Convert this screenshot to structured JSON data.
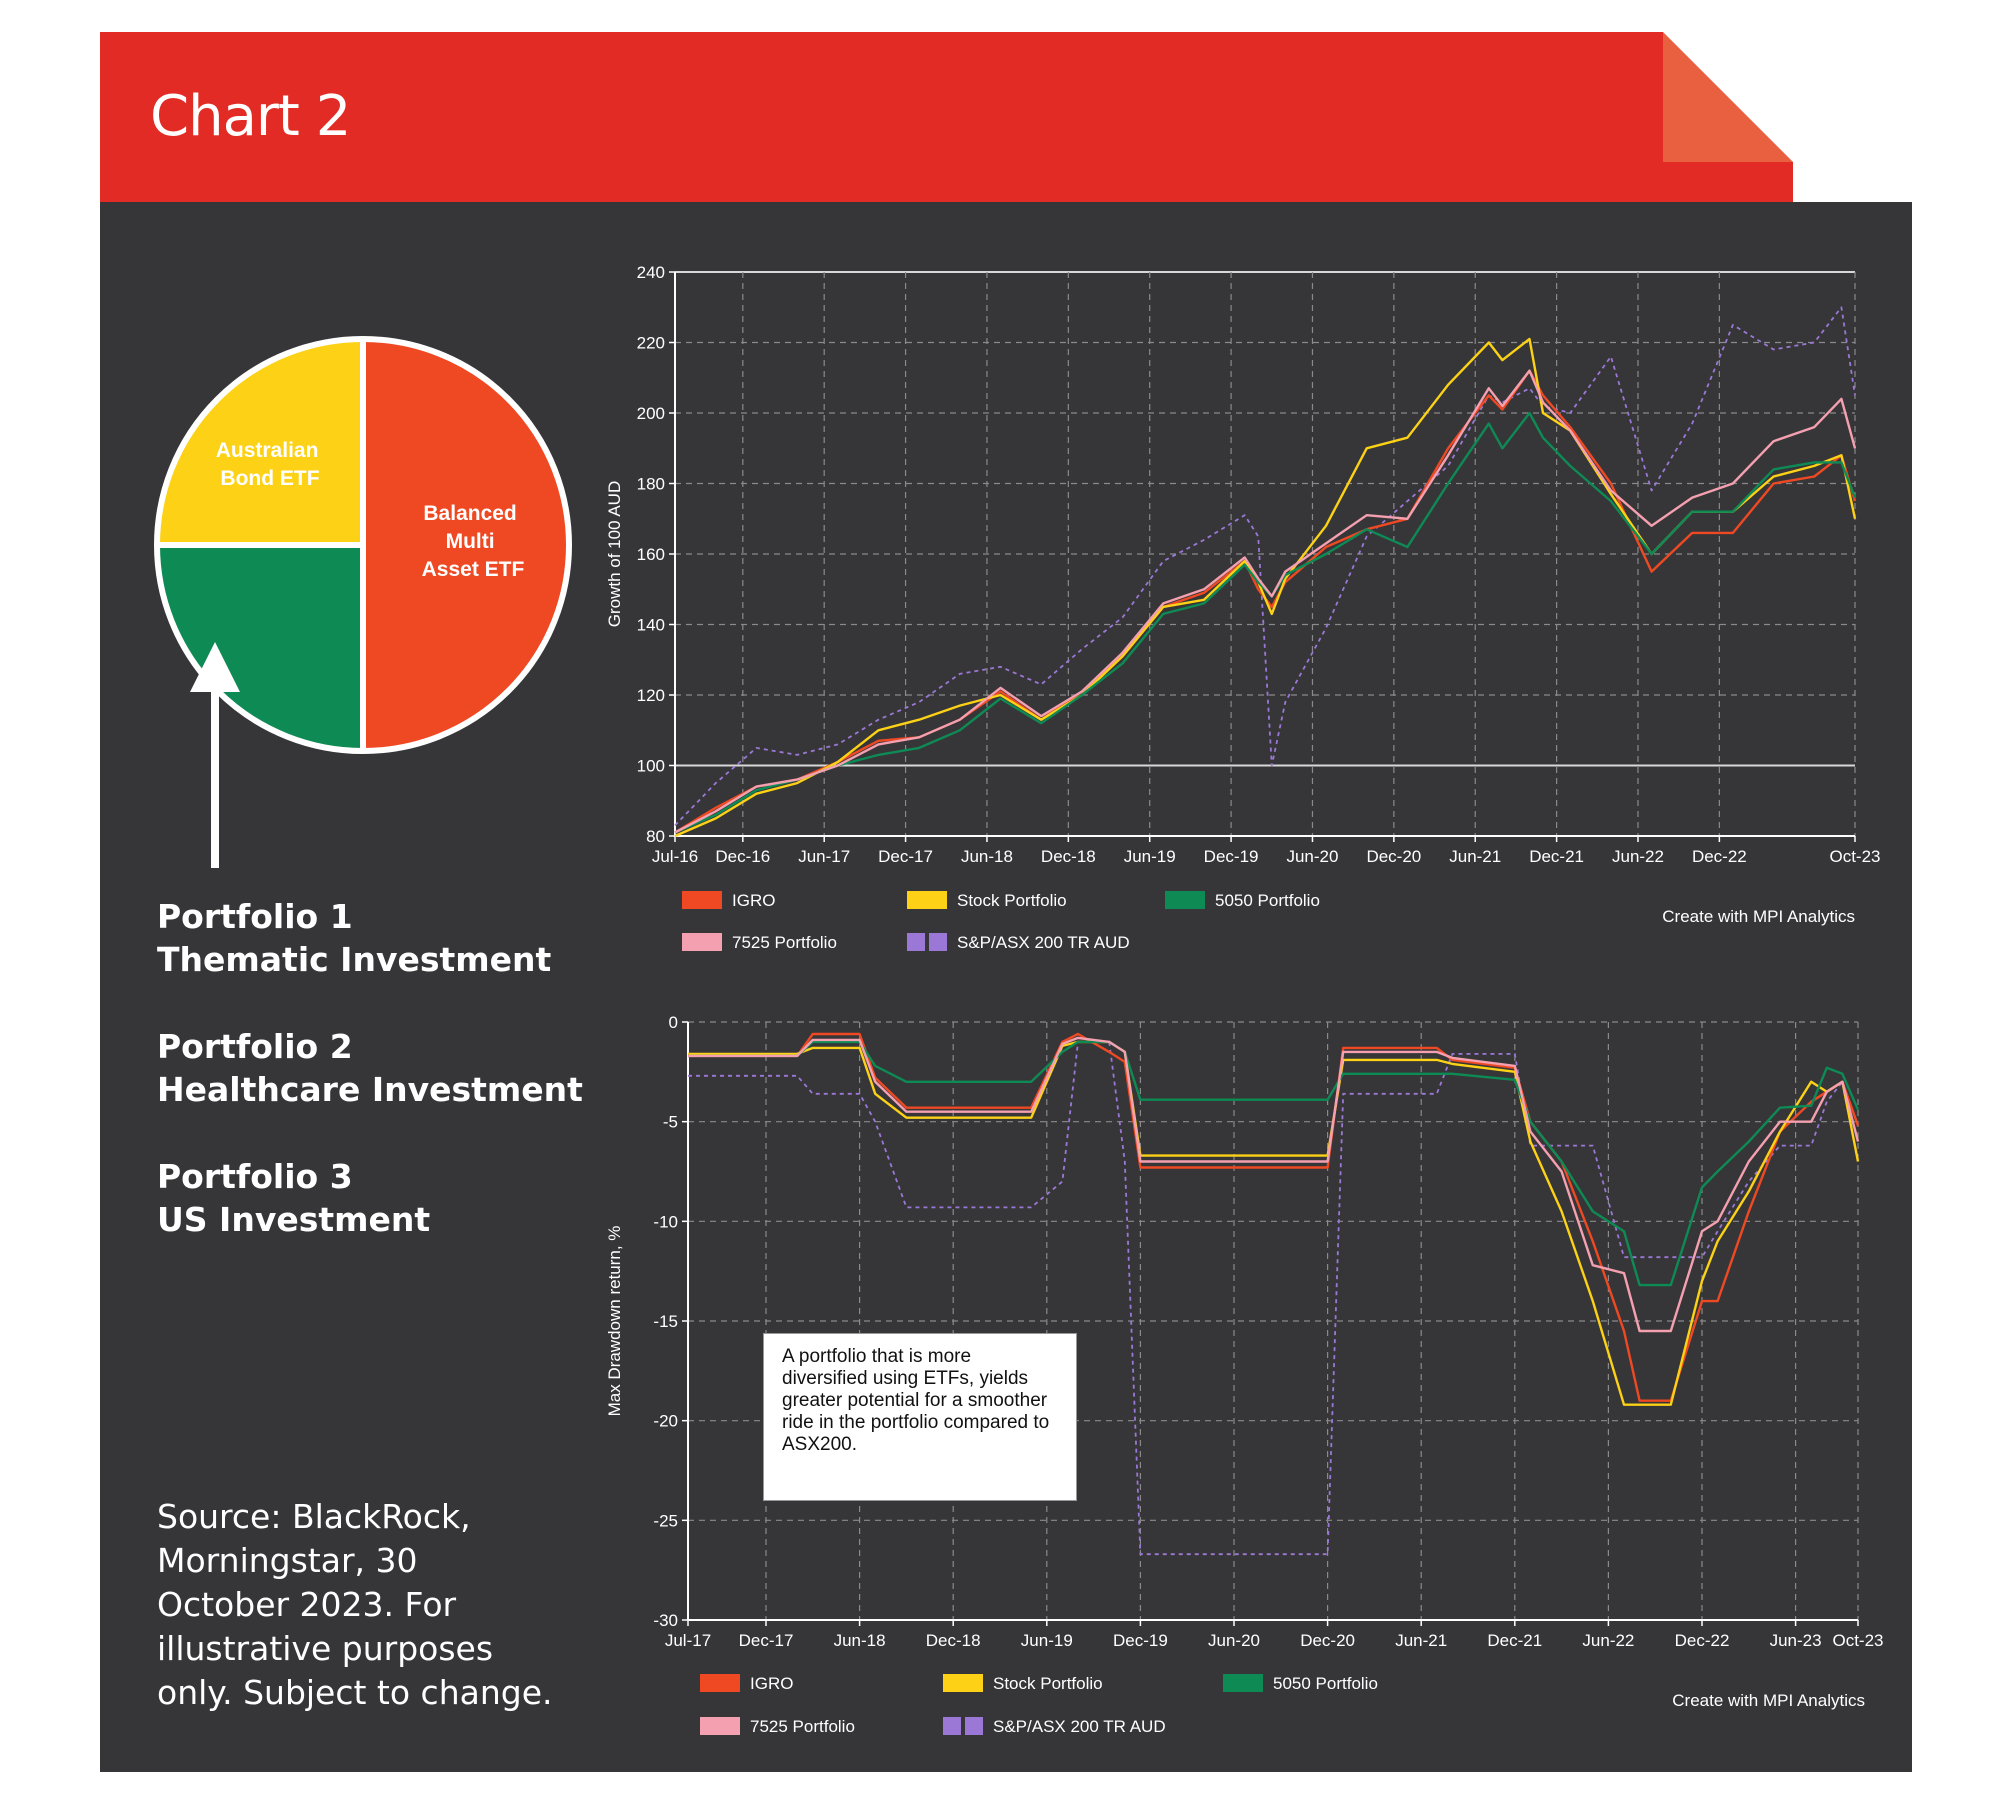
{
  "header": {
    "title": "Chart 2"
  },
  "pie": {
    "type": "pie",
    "slices": [
      {
        "label": "Balanced Multi Asset ETF",
        "lines": [
          "Balanced",
          "Multi",
          "Asset ETF"
        ],
        "value": 50,
        "color": "#ef4923"
      },
      {
        "label": "Australian Bond ETF",
        "lines": [
          "Australian",
          "Bond ETF"
        ],
        "value": 25,
        "color": "#0e8a55"
      },
      {
        "label": "",
        "lines": [],
        "value": 25,
        "color": "#fcd116"
      }
    ]
  },
  "portfolios": [
    {
      "name": "Portfolio 1",
      "desc": "Thematic Investment"
    },
    {
      "name": "Portfolio 2",
      "desc": "Healthcare Investment"
    },
    {
      "name": "Portfolio 3",
      "desc": "US Investment"
    }
  ],
  "source": "Source: BlackRock, Morningstar, 30 October 2023. For illustrative purposes only. Subject to change.",
  "note": "A portfolio that is more diversified using ETFs, yields greater potential for a smoother ride in the portfolio compared to ASX200.",
  "chart_data": [
    {
      "type": "line",
      "ylabel": "Growth of 100 AUD",
      "ylim": [
        80,
        240
      ],
      "yticks": [
        80,
        100,
        120,
        140,
        160,
        180,
        200,
        220,
        240
      ],
      "xlim": [
        "2016-07",
        "2023-10"
      ],
      "xticks": [
        "Jul-16",
        "Dec-16",
        "Jun-17",
        "Dec-17",
        "Jun-18",
        "Dec-18",
        "Jun-19",
        "Dec-19",
        "Jun-20",
        "Dec-20",
        "Jun-21",
        "Dec-21",
        "Jun-22",
        "Dec-22",
        "Oct-23"
      ],
      "grid": true,
      "legend_position": "bottom",
      "credit": "Create with MPI Analytics",
      "x": [
        "2016-07",
        "2016-10",
        "2017-01",
        "2017-04",
        "2017-07",
        "2017-10",
        "2018-01",
        "2018-04",
        "2018-07",
        "2018-10",
        "2019-01",
        "2019-04",
        "2019-07",
        "2019-10",
        "2020-01",
        "2020-02",
        "2020-03",
        "2020-04",
        "2020-07",
        "2020-10",
        "2021-01",
        "2021-04",
        "2021-07",
        "2021-08",
        "2021-10",
        "2021-11",
        "2022-01",
        "2022-04",
        "2022-07",
        "2022-10",
        "2023-01",
        "2023-04",
        "2023-07",
        "2023-09",
        "2023-10"
      ],
      "series": [
        {
          "name": "IGRO",
          "color": "#ef4923",
          "dash": false,
          "values": [
            81,
            88,
            94,
            96,
            101,
            107,
            108,
            113,
            121,
            113,
            121,
            131,
            145,
            149,
            158,
            150,
            145,
            152,
            162,
            167,
            170,
            190,
            205,
            201,
            212,
            205,
            196,
            180,
            155,
            166,
            166,
            180,
            182,
            188,
            175
          ]
        },
        {
          "name": "Stock Portfolio",
          "color": "#fcd116",
          "dash": false,
          "values": [
            80,
            85,
            92,
            95,
            101,
            110,
            113,
            117,
            120,
            113,
            120,
            131,
            145,
            147,
            158,
            152,
            143,
            153,
            168,
            190,
            193,
            208,
            220,
            215,
            221,
            200,
            195,
            177,
            160,
            172,
            172,
            182,
            185,
            188,
            170
          ]
        },
        {
          "name": "5050 Portfolio",
          "color": "#0e8a55",
          "dash": false,
          "values": [
            81,
            86,
            93,
            96,
            100,
            103,
            105,
            110,
            119,
            112,
            120,
            129,
            143,
            146,
            157,
            152,
            148,
            154,
            160,
            167,
            162,
            180,
            197,
            190,
            200,
            193,
            185,
            175,
            160,
            172,
            172,
            184,
            186,
            186,
            176
          ]
        },
        {
          "name": "7525 Portfolio",
          "color": "#f4a0b0",
          "dash": false,
          "values": [
            81,
            87,
            94,
            96,
            100,
            106,
            108,
            113,
            122,
            114,
            121,
            132,
            146,
            150,
            159,
            153,
            148,
            155,
            163,
            171,
            170,
            188,
            207,
            202,
            212,
            203,
            195,
            178,
            168,
            176,
            180,
            192,
            196,
            204,
            190
          ]
        },
        {
          "name": "S&P/ASX 200 TR AUD",
          "color": "#9b78d6",
          "dash": true,
          "values": [
            83,
            95,
            105,
            103,
            106,
            113,
            118,
            126,
            128,
            123,
            133,
            142,
            158,
            164,
            171,
            165,
            100,
            118,
            139,
            165,
            175,
            185,
            205,
            203,
            207,
            202,
            200,
            216,
            178,
            197,
            225,
            218,
            220,
            230,
            205
          ]
        }
      ]
    },
    {
      "type": "line",
      "ylabel": "Max Drawdown return, %",
      "ylim": [
        -30,
        0
      ],
      "yticks": [
        0,
        -5,
        -10,
        -15,
        -20,
        -25,
        -30
      ],
      "xlim": [
        "2017-07",
        "2023-10"
      ],
      "xticks": [
        "Jul-17",
        "Dec-17",
        "Jun-18",
        "Dec-18",
        "Jun-19",
        "Dec-19",
        "Jun-20",
        "Dec-20",
        "Jun-21",
        "Dec-21",
        "Jun-22",
        "Dec-22",
        "Jun-23",
        "Oct-23"
      ],
      "grid": true,
      "legend_position": "bottom",
      "credit": "Create with MPI Analytics",
      "x": [
        "2017-07",
        "2018-02",
        "2018-03",
        "2018-06",
        "2018-07",
        "2018-09",
        "2019-05",
        "2019-07",
        "2019-08",
        "2019-10",
        "2019-11",
        "2019-12",
        "2020-01",
        "2020-12",
        "2021-01",
        "2021-07",
        "2021-08",
        "2021-12",
        "2022-01",
        "2022-03",
        "2022-05",
        "2022-07",
        "2022-08",
        "2022-10",
        "2022-12",
        "2023-01",
        "2023-03",
        "2023-05",
        "2023-07",
        "2023-08",
        "2023-09",
        "2023-10"
      ],
      "series": [
        {
          "name": "IGRO",
          "color": "#ef4923",
          "dash": false,
          "values": [
            -1.7,
            -1.7,
            -0.6,
            -0.6,
            -2.8,
            -4.3,
            -4.3,
            -1.0,
            -0.6,
            -1.5,
            -2.0,
            -7.3,
            -7.3,
            -7.3,
            -1.3,
            -1.3,
            -1.9,
            -2.3,
            -5.0,
            -7.0,
            -11.0,
            -15.5,
            -19.0,
            -19.0,
            -14.0,
            -14.0,
            -9.5,
            -5.5,
            -4.0,
            -3.5,
            -3.0,
            -5.2
          ]
        },
        {
          "name": "Stock Portfolio",
          "color": "#fcd116",
          "dash": false,
          "values": [
            -1.6,
            -1.6,
            -1.3,
            -1.3,
            -3.6,
            -4.8,
            -4.8,
            -1.2,
            -1.0,
            -1.0,
            -1.5,
            -6.7,
            -6.7,
            -6.7,
            -1.9,
            -1.9,
            -2.1,
            -2.5,
            -6.0,
            -9.5,
            -14.0,
            -19.2,
            -19.2,
            -19.2,
            -13.0,
            -11.0,
            -8.5,
            -5.5,
            -3.0,
            -3.5,
            -3.0,
            -7.0
          ]
        },
        {
          "name": "5050 Portfolio",
          "color": "#0e8a55",
          "dash": false,
          "values": [
            -1.7,
            -1.7,
            -1.0,
            -1.0,
            -2.2,
            -3.0,
            -3.0,
            -1.5,
            -1.0,
            -1.0,
            -1.5,
            -3.9,
            -3.9,
            -3.9,
            -2.6,
            -2.6,
            -2.6,
            -2.9,
            -5.0,
            -7.0,
            -9.5,
            -10.5,
            -13.2,
            -13.2,
            -8.3,
            -7.5,
            -6.0,
            -4.3,
            -4.2,
            -2.3,
            -2.6,
            -4.4
          ]
        },
        {
          "name": "7525 Portfolio",
          "color": "#f4a0b0",
          "dash": false,
          "values": [
            -1.7,
            -1.7,
            -0.9,
            -0.9,
            -3.0,
            -4.5,
            -4.5,
            -1.1,
            -0.8,
            -1.0,
            -1.5,
            -7.0,
            -7.0,
            -7.0,
            -1.5,
            -1.5,
            -1.8,
            -2.2,
            -5.5,
            -7.5,
            -12.2,
            -12.6,
            -15.5,
            -15.5,
            -10.5,
            -10.0,
            -7.0,
            -5.0,
            -5.0,
            -3.5,
            -3.0,
            -6.0
          ]
        },
        {
          "name": "S&P/ASX 200 TR AUD",
          "color": "#9b78d6",
          "dash": true,
          "values": [
            -2.7,
            -2.7,
            -3.6,
            -3.6,
            -5.0,
            -9.3,
            -9.3,
            -8.0,
            -1.0,
            -1.0,
            -7.0,
            -26.7,
            -26.7,
            -26.7,
            -3.6,
            -3.6,
            -1.6,
            -1.6,
            -6.2,
            -6.2,
            -6.2,
            -11.8,
            -11.8,
            -11.8,
            -11.8,
            -10.5,
            -8.0,
            -6.2,
            -6.2,
            -4.0,
            -3.0,
            -7.0
          ]
        }
      ]
    }
  ]
}
